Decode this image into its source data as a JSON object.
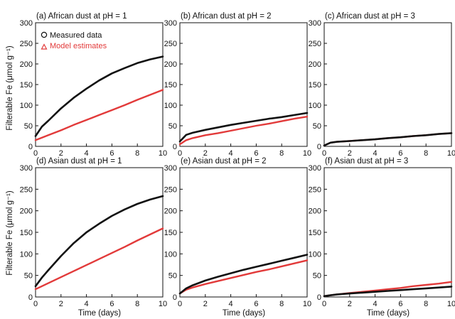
{
  "figure": {
    "y_axis_label": "Filterable Fe (μmol g⁻¹)",
    "x_axis_label": "Time (days)",
    "legend": {
      "measured": "Measured data",
      "model": "Model estimates",
      "measured_color": "#111111",
      "model_color": "#e23a3a"
    }
  },
  "chart_data": [
    {
      "type": "line",
      "title": "(a) African dust at pH = 1",
      "xlim": [
        0,
        10
      ],
      "ylim": [
        0,
        300
      ],
      "xticks": [
        0,
        2,
        4,
        6,
        8,
        10
      ],
      "yticks": [
        0,
        50,
        100,
        150,
        200,
        250,
        300
      ],
      "x": [
        0,
        0.5,
        1,
        2,
        3,
        4,
        5,
        6,
        7,
        8,
        9,
        10
      ],
      "series": [
        {
          "name": "Measured data",
          "values": [
            25,
            48,
            62,
            92,
            118,
            140,
            160,
            177,
            190,
            202,
            211,
            218
          ]
        },
        {
          "name": "Model estimates",
          "values": [
            15,
            21,
            27,
            39,
            52,
            64,
            76,
            88,
            100,
            113,
            125,
            137
          ]
        }
      ]
    },
    {
      "type": "line",
      "title": "(b) African dust at pH = 2",
      "xlim": [
        0,
        10
      ],
      "ylim": [
        0,
        300
      ],
      "xticks": [
        0,
        2,
        4,
        6,
        8,
        10
      ],
      "yticks": [
        0,
        50,
        100,
        150,
        200,
        250,
        300
      ],
      "x": [
        0,
        0.5,
        1,
        2,
        3,
        4,
        5,
        6,
        7,
        8,
        9,
        10
      ],
      "series": [
        {
          "name": "Measured data",
          "values": [
            12,
            28,
            33,
            40,
            46,
            52,
            57,
            62,
            67,
            71,
            76,
            81
          ]
        },
        {
          "name": "Model estimates",
          "values": [
            5,
            15,
            20,
            27,
            32,
            38,
            44,
            50,
            55,
            61,
            67,
            72
          ]
        }
      ]
    },
    {
      "type": "line",
      "title": "(c) African dust at pH = 3",
      "xlim": [
        0,
        10
      ],
      "ylim": [
        0,
        300
      ],
      "xticks": [
        0,
        2,
        4,
        6,
        8,
        10
      ],
      "yticks": [
        0,
        50,
        100,
        150,
        200,
        250,
        300
      ],
      "x": [
        0,
        0.5,
        1,
        2,
        3,
        4,
        5,
        6,
        7,
        8,
        9,
        10
      ],
      "series": [
        {
          "name": "Measured data",
          "values": [
            2,
            9,
            11,
            13,
            15,
            17,
            20,
            22,
            25,
            27,
            30,
            32
          ]
        },
        {
          "name": "Model estimates",
          "values": [
            2,
            9,
            11,
            13,
            15,
            17,
            20,
            22,
            25,
            27,
            30,
            32
          ]
        }
      ]
    },
    {
      "type": "line",
      "title": "(d) Asian dust at pH = 1",
      "xlim": [
        0,
        10
      ],
      "ylim": [
        0,
        300
      ],
      "xticks": [
        0,
        2,
        4,
        6,
        8,
        10
      ],
      "yticks": [
        0,
        50,
        100,
        150,
        200,
        250,
        300
      ],
      "x": [
        0,
        0.5,
        1,
        2,
        3,
        4,
        5,
        6,
        7,
        8,
        9,
        10
      ],
      "series": [
        {
          "name": "Measured data",
          "values": [
            25,
            45,
            62,
            95,
            125,
            150,
            170,
            188,
            203,
            216,
            226,
            234
          ]
        },
        {
          "name": "Model estimates",
          "values": [
            18,
            25,
            32,
            46,
            60,
            74,
            88,
            102,
            116,
            131,
            145,
            159
          ]
        }
      ]
    },
    {
      "type": "line",
      "title": "(e) Asian dust at pH = 2",
      "xlim": [
        0,
        10
      ],
      "ylim": [
        0,
        300
      ],
      "xticks": [
        0,
        2,
        4,
        6,
        8,
        10
      ],
      "yticks": [
        0,
        50,
        100,
        150,
        200,
        250,
        300
      ],
      "x": [
        0,
        0.5,
        1,
        2,
        3,
        4,
        5,
        6,
        7,
        8,
        9,
        10
      ],
      "series": [
        {
          "name": "Measured data",
          "values": [
            8,
            20,
            27,
            38,
            47,
            55,
            63,
            70,
            77,
            84,
            91,
            98
          ]
        },
        {
          "name": "Model estimates",
          "values": [
            8,
            17,
            22,
            30,
            37,
            44,
            51,
            58,
            64,
            71,
            78,
            85
          ]
        }
      ]
    },
    {
      "type": "line",
      "title": "(f) Asian dust at pH = 3",
      "xlim": [
        0,
        10
      ],
      "ylim": [
        0,
        300
      ],
      "xticks": [
        0,
        2,
        4,
        6,
        8,
        10
      ],
      "yticks": [
        0,
        50,
        100,
        150,
        200,
        250,
        300
      ],
      "x": [
        0,
        0.5,
        1,
        2,
        3,
        4,
        5,
        6,
        7,
        8,
        9,
        10
      ],
      "series": [
        {
          "name": "Measured data",
          "values": [
            2,
            4,
            6,
            8,
            10,
            12,
            14,
            16,
            18,
            20,
            22,
            24
          ]
        },
        {
          "name": "Model estimates",
          "values": [
            2,
            4,
            6,
            9,
            12,
            15,
            18,
            21,
            25,
            28,
            31,
            35
          ]
        }
      ]
    }
  ]
}
